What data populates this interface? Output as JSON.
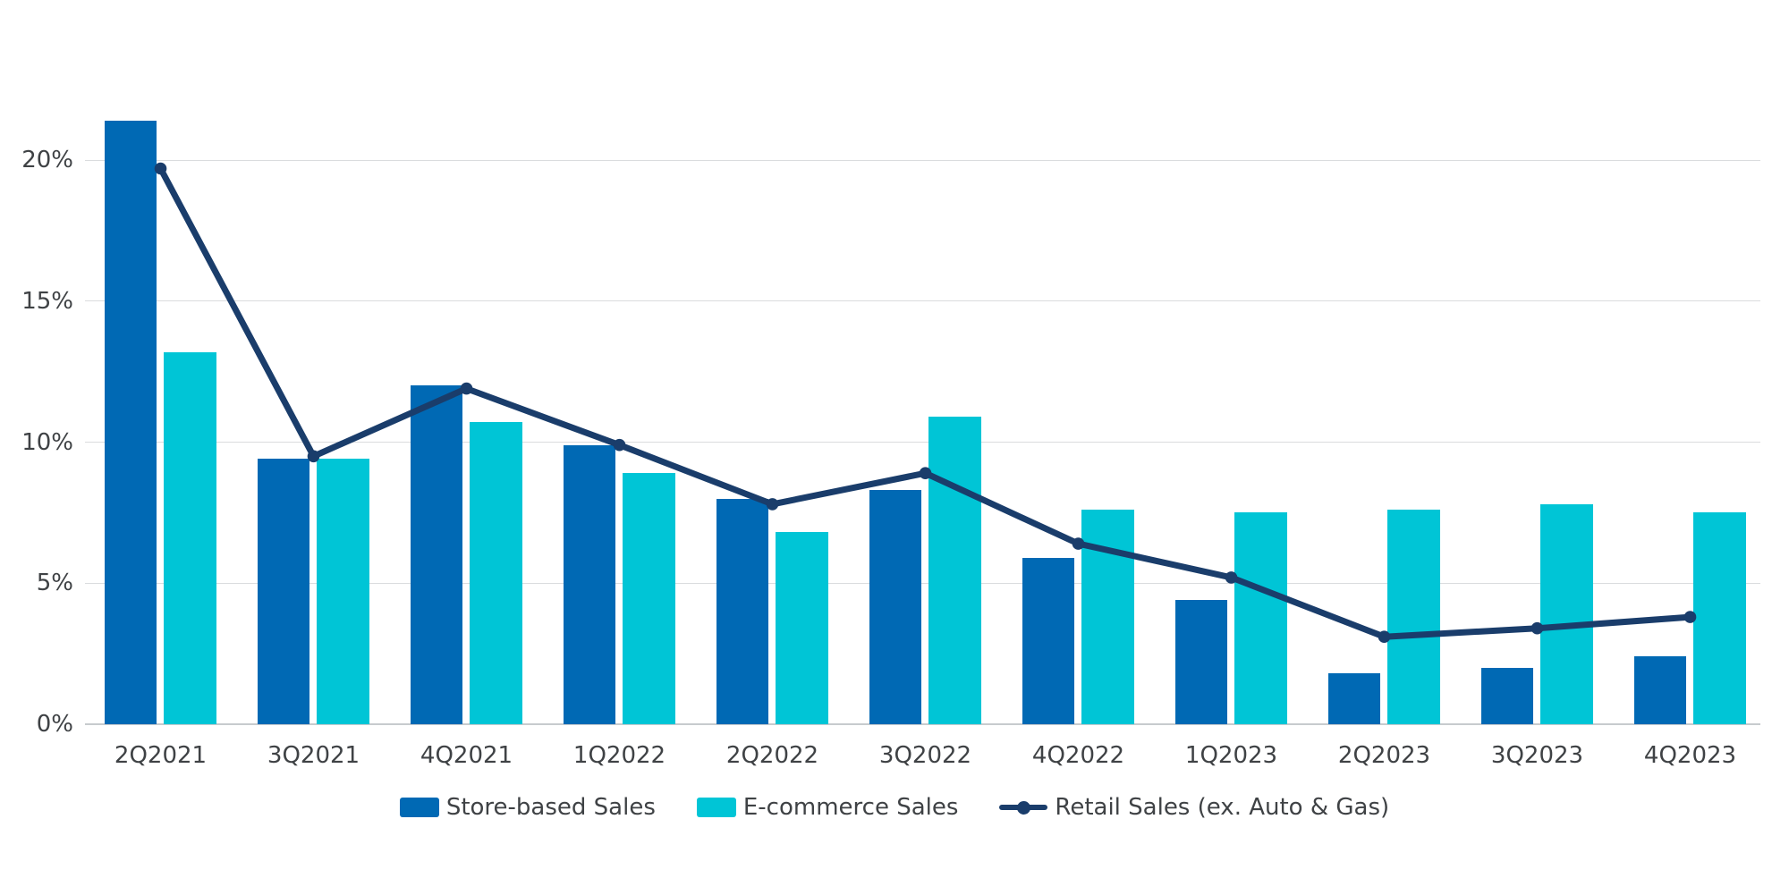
{
  "chart_data": {
    "type": "combo-bar-line",
    "categories": [
      "2Q2021",
      "3Q2021",
      "4Q2021",
      "1Q2022",
      "2Q2022",
      "3Q2022",
      "4Q2022",
      "1Q2023",
      "2Q2023",
      "3Q2023",
      "4Q2023"
    ],
    "series": [
      {
        "name": "Store-based Sales",
        "type": "bar",
        "color": "#0069b4",
        "values": [
          21.4,
          9.4,
          12.0,
          9.9,
          8.0,
          8.3,
          5.9,
          4.4,
          1.8,
          2.0,
          2.4
        ]
      },
      {
        "name": "E-commerce Sales",
        "type": "bar",
        "color": "#00c5d6",
        "values": [
          13.2,
          9.4,
          10.7,
          8.9,
          6.8,
          10.9,
          7.6,
          7.5,
          7.6,
          7.8,
          7.5
        ]
      },
      {
        "name": "Retail Sales (ex. Auto & Gas)",
        "type": "line",
        "color": "#1a3d6b",
        "values": [
          19.7,
          9.5,
          11.9,
          9.9,
          7.8,
          8.9,
          6.4,
          5.2,
          3.1,
          3.4,
          3.8
        ]
      }
    ],
    "title": "",
    "xlabel": "",
    "ylabel": "",
    "y_ticks": [
      {
        "label": "20%",
        "value": 20
      },
      {
        "label": "15%",
        "value": 15
      },
      {
        "label": "10%",
        "value": 10
      },
      {
        "label": "5%",
        "value": 5
      },
      {
        "label": "0%",
        "value": 0
      }
    ],
    "ylim": [
      0,
      22
    ],
    "grid": "horizontal",
    "legend_position": "bottom",
    "colors": {
      "store_bar": "#0069b4",
      "ecommerce_bar": "#00c5d6",
      "retail_line": "#1a3d6b",
      "gridline": "#dadcde",
      "axis_text": "#3f4245",
      "background": "#ffffff"
    }
  }
}
